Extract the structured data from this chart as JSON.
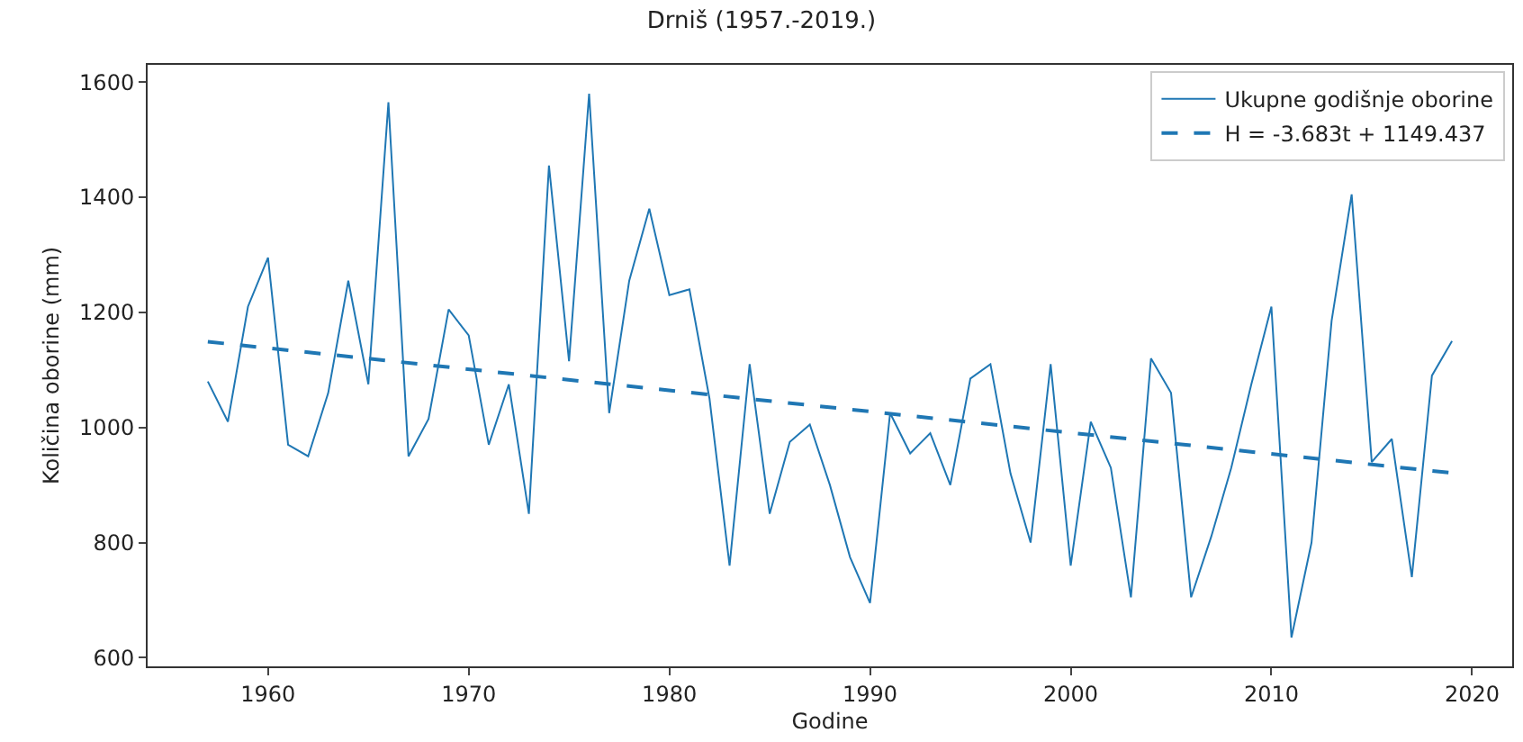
{
  "chart_data": {
    "type": "line",
    "title": "Drniš (1957.-2019.)",
    "xlabel": "Godine",
    "ylabel": "Količina oborine (mm)",
    "x": [
      1957,
      1958,
      1959,
      1960,
      1961,
      1962,
      1963,
      1964,
      1965,
      1966,
      1967,
      1968,
      1969,
      1970,
      1971,
      1972,
      1973,
      1974,
      1975,
      1976,
      1977,
      1978,
      1979,
      1980,
      1981,
      1982,
      1983,
      1984,
      1985,
      1986,
      1987,
      1988,
      1989,
      1990,
      1991,
      1992,
      1993,
      1994,
      1995,
      1996,
      1997,
      1998,
      1999,
      2000,
      2001,
      2002,
      2003,
      2004,
      2005,
      2006,
      2007,
      2008,
      2009,
      2010,
      2011,
      2012,
      2013,
      2014,
      2015,
      2016,
      2017,
      2018,
      2019
    ],
    "series": [
      {
        "name": "Ukupne godišnje oborine",
        "color": "#1f77b4",
        "line_style": "solid",
        "values": [
          1080,
          1010,
          1210,
          1295,
          970,
          950,
          1060,
          1255,
          1075,
          1565,
          950,
          1015,
          1205,
          1160,
          970,
          1075,
          850,
          1455,
          1115,
          1580,
          1025,
          1255,
          1380,
          1230,
          1240,
          1050,
          760,
          1110,
          850,
          975,
          1005,
          900,
          775,
          695,
          1025,
          955,
          990,
          900,
          1085,
          1110,
          920,
          800,
          1110,
          760,
          1010,
          930,
          705,
          1120,
          1060,
          705,
          810,
          930,
          1075,
          1210,
          635,
          800,
          1185,
          1405,
          940,
          980,
          740,
          1090,
          1150
        ]
      },
      {
        "name": "H = -3.683t + 1149.437",
        "color": "#1f77b4",
        "line_style": "dashed",
        "x": [
          1957,
          2019
        ],
        "values": [
          1149,
          921
        ]
      }
    ],
    "xlim": [
      1954,
      2022
    ],
    "xticks": [
      1960,
      1970,
      1980,
      1990,
      2000,
      2010,
      2020
    ],
    "ylim": [
      585,
      1630
    ],
    "yticks": [
      600,
      800,
      1000,
      1200,
      1400,
      1600
    ],
    "legend": "top right",
    "marker": "none",
    "grid": false
  }
}
